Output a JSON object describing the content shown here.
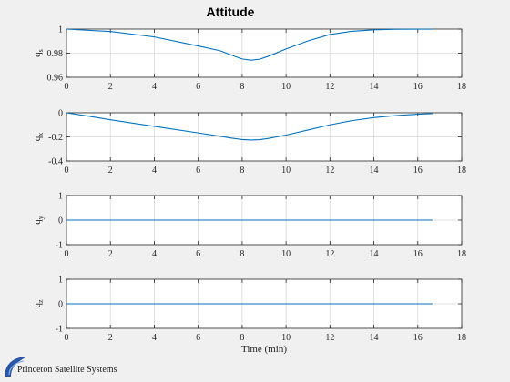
{
  "title": "Attitude",
  "xlabel": "Time (min)",
  "branding": {
    "name": "Princeton Satellite Systems"
  },
  "colors": {
    "series": "#0072bd",
    "grid": "#d9d9d9",
    "axes": "#262626",
    "figure_bg": "#f0f0f0"
  },
  "chart_data": [
    {
      "type": "line",
      "ylabel": {
        "base": "q",
        "sub": "s"
      },
      "xlim": [
        0,
        18
      ],
      "ylim": [
        0.96,
        1
      ],
      "xticks": [
        0,
        2,
        4,
        6,
        8,
        10,
        12,
        14,
        16,
        18
      ],
      "yticks": [
        0.96,
        0.98,
        1
      ],
      "ytick_labels": [
        "0.96",
        "0.98",
        "1"
      ],
      "grid": true,
      "series": [
        {
          "x": [
            0,
            2,
            4,
            6,
            7,
            7.5,
            8,
            8.4,
            8.8,
            9.2,
            10,
            11,
            12,
            13,
            14,
            15,
            16,
            16.67
          ],
          "y": [
            1.0,
            0.998,
            0.9935,
            0.986,
            0.982,
            0.9785,
            0.9752,
            0.9742,
            0.975,
            0.9775,
            0.9835,
            0.9902,
            0.9955,
            0.9982,
            0.9994,
            0.9998,
            0.9999,
            0.9999
          ]
        }
      ]
    },
    {
      "type": "line",
      "ylabel": {
        "base": "q",
        "sub": "x"
      },
      "xlim": [
        0,
        18
      ],
      "ylim": [
        -0.4,
        0
      ],
      "xticks": [
        0,
        2,
        4,
        6,
        8,
        10,
        12,
        14,
        16,
        18
      ],
      "yticks": [
        -0.4,
        -0.2,
        0
      ],
      "ytick_labels": [
        "-0.4",
        "-0.2",
        "0"
      ],
      "grid": true,
      "series": [
        {
          "x": [
            0,
            1,
            2,
            4,
            6,
            7,
            7.5,
            8,
            8.4,
            8.8,
            9.2,
            10,
            11,
            12,
            13,
            14,
            15,
            16,
            16.67
          ],
          "y": [
            0,
            -0.028,
            -0.058,
            -0.113,
            -0.167,
            -0.195,
            -0.21,
            -0.222,
            -0.226,
            -0.223,
            -0.213,
            -0.185,
            -0.143,
            -0.1,
            -0.065,
            -0.04,
            -0.023,
            -0.012,
            -0.006
          ]
        }
      ]
    },
    {
      "type": "line",
      "ylabel": {
        "base": "q",
        "sub": "y"
      },
      "xlim": [
        0,
        18
      ],
      "ylim": [
        -1,
        1
      ],
      "xticks": [
        0,
        2,
        4,
        6,
        8,
        10,
        12,
        14,
        16,
        18
      ],
      "yticks": [
        -1,
        0,
        1
      ],
      "ytick_labels": [
        "-1",
        "0",
        "1"
      ],
      "grid": true,
      "series": [
        {
          "x": [
            0,
            16.67
          ],
          "y": [
            0,
            0
          ]
        }
      ]
    },
    {
      "type": "line",
      "ylabel": {
        "base": "q",
        "sub": "z"
      },
      "xlim": [
        0,
        18
      ],
      "ylim": [
        -1,
        1
      ],
      "xticks": [
        0,
        2,
        4,
        6,
        8,
        10,
        12,
        14,
        16,
        18
      ],
      "yticks": [
        -1,
        0,
        1
      ],
      "ytick_labels": [
        "-1",
        "0",
        "1"
      ],
      "grid": true,
      "series": [
        {
          "x": [
            0,
            16.67
          ],
          "y": [
            0,
            0
          ]
        }
      ]
    }
  ]
}
